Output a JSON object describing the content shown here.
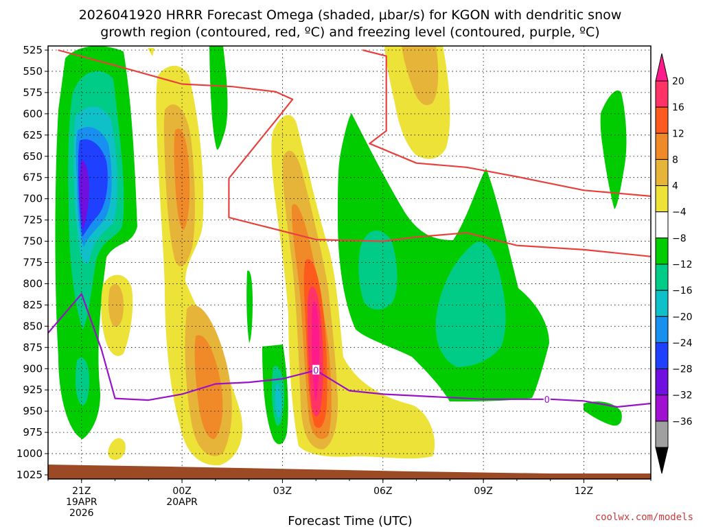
{
  "chart_data": {
    "type": "contour",
    "title": "2026041920 HRRR Forecast Omega (shaded, μbar/s) for KGON with dendritic snow",
    "subtitle": "growth region (contoured, red, ºC) and freezing level (contoured, purple, ºC)",
    "xlabel": "Forecast Time (UTC)",
    "credit": "coolwx.com/models",
    "y_levels": [
      525,
      550,
      575,
      600,
      625,
      650,
      675,
      700,
      725,
      750,
      775,
      800,
      825,
      850,
      875,
      900,
      925,
      950,
      975,
      1000,
      1025
    ],
    "y_tick_labels": [
      "525",
      "550",
      "575",
      "600",
      "625",
      "650",
      "675",
      "700",
      "725",
      "750",
      "775",
      "800",
      "825",
      "850",
      "875",
      "900",
      "925",
      "950",
      "975",
      "1000",
      "1025"
    ],
    "x_ticks": [
      {
        "hour": 21,
        "label": "21Z",
        "sub1": "19APR",
        "sub2": "2026"
      },
      {
        "hour": 24,
        "label": "00Z",
        "sub1": "20APR",
        "sub2": ""
      },
      {
        "hour": 27,
        "label": "03Z",
        "sub1": "",
        "sub2": ""
      },
      {
        "hour": 30,
        "label": "06Z",
        "sub1": "",
        "sub2": ""
      },
      {
        "hour": 33,
        "label": "09Z",
        "sub1": "",
        "sub2": ""
      },
      {
        "hour": 36,
        "label": "12Z",
        "sub1": "",
        "sub2": ""
      }
    ],
    "colorbar": [
      {
        "label": "20",
        "color": "#ff3366"
      },
      {
        "label": "16",
        "color": "#ff5a1e"
      },
      {
        "label": "12",
        "color": "#f08a28"
      },
      {
        "label": "8",
        "color": "#e6b438"
      },
      {
        "label": "4",
        "color": "#ece238"
      },
      {
        "label": "−4",
        "color": "#ffffff"
      },
      {
        "label": "−8",
        "color": "#00cc00"
      },
      {
        "label": "−12",
        "color": "#00cc88"
      },
      {
        "label": "−16",
        "color": "#10c0c8"
      },
      {
        "label": "−20",
        "color": "#1890f0"
      },
      {
        "label": "−24",
        "color": "#2040ff"
      },
      {
        "label": "−28",
        "color": "#7010e0"
      },
      {
        "label": "−32",
        "color": "#a010d0"
      },
      {
        "label": "−36",
        "color": "#a0a0a0"
      }
    ],
    "freezing_level_label": "0",
    "freezing_level": {
      "hours": [
        20.0,
        21.0,
        21.6,
        22.0,
        23.0,
        24.0,
        25.0,
        26.0,
        27.0,
        28.0,
        29.0,
        30.0,
        31.0,
        32.0,
        33.0,
        34.0,
        35.0,
        36.0,
        37.0,
        38.0
      ],
      "pressure": [
        858,
        812,
        878,
        935,
        937,
        930,
        918,
        916,
        912,
        902,
        926,
        930,
        932,
        934,
        936,
        936,
        936,
        938,
        945,
        941
      ]
    },
    "dgz_upper": {
      "hours": [
        20.3,
        22.0,
        24.0,
        25.5,
        26.8,
        27.3,
        27.0,
        25.4,
        25.4,
        26.5,
        28.0,
        30.0,
        31.0,
        32.5,
        34.0,
        36.0,
        38.0
      ],
      "pressure": [
        525,
        543,
        565,
        568,
        574,
        583,
        598,
        676,
        722,
        733,
        748,
        750,
        745,
        740,
        755,
        760,
        768
      ]
    },
    "dgz_lower": {
      "hours": [
        29.4,
        30.1,
        30.1,
        29.6,
        31.0,
        32.5,
        34.0,
        36.0,
        38.0
      ],
      "pressure": [
        525,
        532,
        620,
        635,
        658,
        663,
        674,
        690,
        697
      ]
    }
  }
}
